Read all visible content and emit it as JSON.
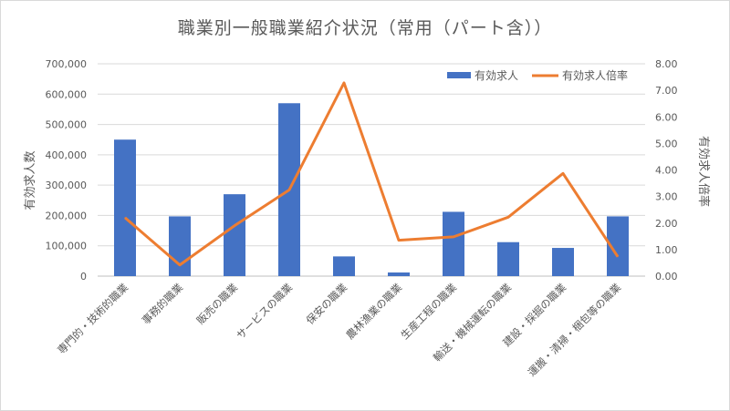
{
  "chart_data": {
    "type": "bar",
    "title": "職業別一般職業紹介状況（常用（パート含））",
    "categories": [
      "専門的・技術的職業",
      "事務的職業",
      "販売の職業",
      "サービスの職業",
      "保安の職業",
      "農林漁業の職業",
      "生産工程の職業",
      "輸送・機械運転の職業",
      "建設・採掘の職業",
      "運搬・清掃・梱包等の職業"
    ],
    "series": [
      {
        "name": "有効求人",
        "type": "bar",
        "axis": "left",
        "color": "#4472C4",
        "values": [
          450000,
          197000,
          270000,
          570000,
          65000,
          12000,
          212000,
          112000,
          93000,
          197000
        ]
      },
      {
        "name": "有効求人倍率",
        "type": "line",
        "axis": "right",
        "color": "#ED7D31",
        "values": [
          2.2,
          0.42,
          1.9,
          3.25,
          7.28,
          1.35,
          1.48,
          2.22,
          3.87,
          0.73
        ]
      }
    ],
    "ylabel": "有効求人数",
    "y2label": "有効求人倍率",
    "ylim": [
      0,
      700000
    ],
    "y2lim": [
      0,
      8
    ],
    "yticks": [
      "0",
      "100,000",
      "200,000",
      "300,000",
      "400,000",
      "500,000",
      "600,000",
      "700,000"
    ],
    "y2ticks": [
      "0.00",
      "1.00",
      "2.00",
      "3.00",
      "4.00",
      "5.00",
      "6.00",
      "7.00",
      "8.00"
    ],
    "grid": true,
    "legend": "top-right"
  }
}
